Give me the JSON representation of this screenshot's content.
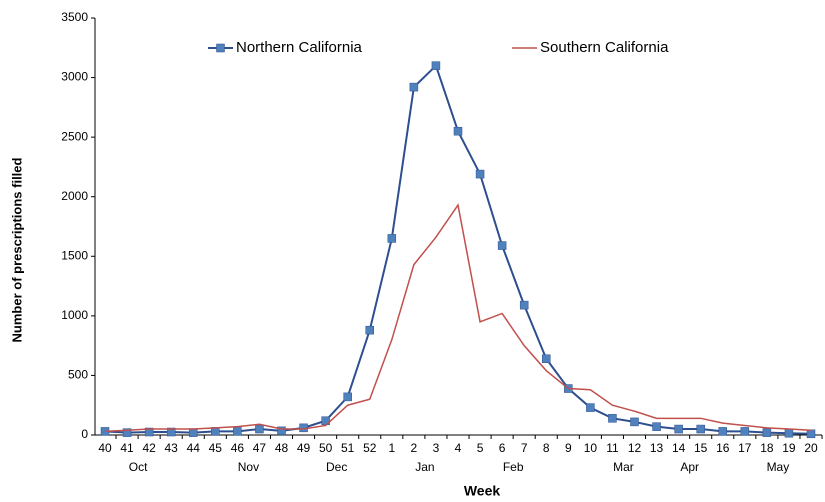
{
  "chart_data": {
    "type": "line",
    "x_label": "Week",
    "y_label": "Number of prescriptions filled",
    "categories": [
      "40",
      "41",
      "42",
      "43",
      "44",
      "45",
      "46",
      "47",
      "48",
      "49",
      "50",
      "51",
      "52",
      "1",
      "2",
      "3",
      "4",
      "5",
      "6",
      "7",
      "8",
      "9",
      "10",
      "11",
      "12",
      "13",
      "14",
      "15",
      "16",
      "17",
      "18",
      "19",
      "20"
    ],
    "month_labels": [
      null,
      "Oct",
      null,
      null,
      null,
      null,
      "Nov",
      null,
      null,
      null,
      "Dec",
      null,
      null,
      null,
      "Jan",
      null,
      null,
      null,
      "Feb",
      null,
      null,
      null,
      null,
      "Mar",
      null,
      null,
      "Apr",
      null,
      null,
      null,
      "May",
      null,
      null
    ],
    "series": [
      {
        "name": "Northern California",
        "color": "#2e4f8f",
        "marker_color": "#4f81bd",
        "marker": "square",
        "values": [
          30,
          20,
          25,
          25,
          20,
          30,
          30,
          50,
          35,
          60,
          120,
          320,
          880,
          1650,
          2920,
          3100,
          2550,
          2190,
          1590,
          1090,
          640,
          390,
          230,
          140,
          110,
          70,
          50,
          50,
          30,
          30,
          20,
          15,
          10
        ]
      },
      {
        "name": "Southern California",
        "color": "#c0504d",
        "marker": "none",
        "values": [
          30,
          40,
          50,
          50,
          50,
          60,
          70,
          90,
          50,
          50,
          80,
          250,
          300,
          800,
          1430,
          1660,
          1930,
          950,
          1020,
          750,
          540,
          390,
          380,
          250,
          200,
          140,
          140,
          140,
          100,
          80,
          60,
          50,
          40
        ]
      }
    ],
    "ylim": [
      0,
      3500
    ],
    "yticks": [
      0,
      500,
      1000,
      1500,
      2000,
      2500,
      3000,
      3500
    ],
    "grid": false,
    "legend": "top"
  }
}
